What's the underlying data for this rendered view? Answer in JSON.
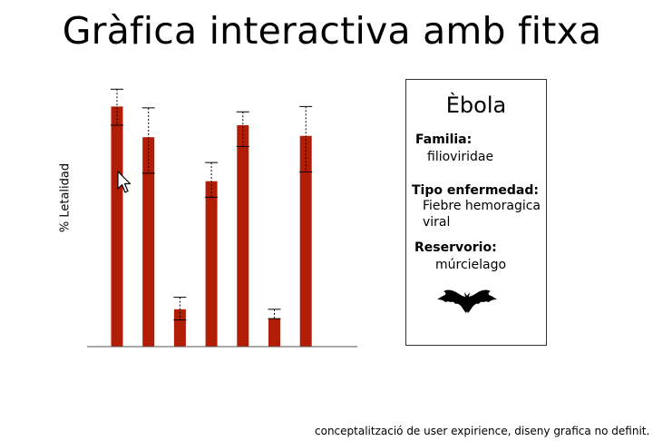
{
  "page": {
    "title": "Gràfica interactiva amb fitxa",
    "footer": "conceptalització de user expirience, diseny grafica no definit."
  },
  "chart_data": {
    "type": "bar",
    "ylabel": "% Letalidad",
    "xlabel": "",
    "title": "",
    "ylim": [
      0,
      100
    ],
    "grid": false,
    "series": [
      {
        "color": "#b21e05",
        "values": [
          90,
          78.5,
          14,
          62,
          83,
          10.5,
          79
        ],
        "error_low": [
          83,
          65,
          10,
          56,
          75,
          10.5,
          65.5
        ],
        "error_high": [
          96.5,
          89.5,
          18.5,
          69,
          88,
          14,
          90
        ]
      }
    ],
    "categories": [
      "",
      "",
      "",
      "",
      "",
      "",
      ""
    ]
  },
  "card": {
    "name": "Èbola",
    "familia_label": "Familia:",
    "familia_value": "filioviridae",
    "tipo_label": "Tipo enfermedad:",
    "tipo_value_1": "Fiebre hemoragica",
    "tipo_value_2": "viral",
    "reservorio_label": "Reservorio:",
    "reservorio_value": "múrcielago",
    "image_icon": "bat-icon"
  },
  "icons": {
    "cursor": "mouse-pointer-icon"
  }
}
